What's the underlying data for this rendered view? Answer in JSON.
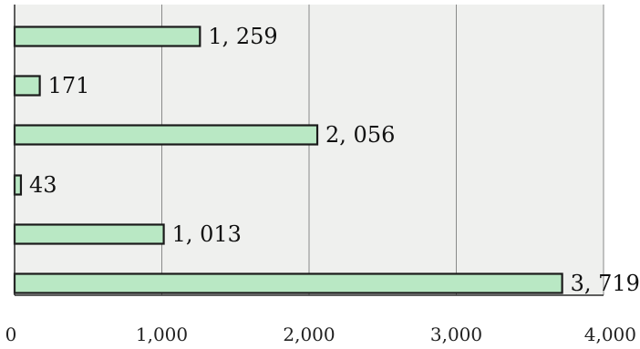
{
  "chart_data": {
    "type": "bar",
    "orientation": "horizontal",
    "categories": [
      "",
      "",
      "",
      "",
      "",
      ""
    ],
    "values": [
      1259,
      171,
      2056,
      43,
      1013,
      3719
    ],
    "value_labels": [
      "1, 259",
      "171",
      "2, 056",
      "43",
      "1, 013",
      "3, 719"
    ],
    "title": "",
    "xlabel": "",
    "ylabel": "",
    "xlim": [
      0,
      4000
    ],
    "x_ticks": [
      0,
      1000,
      2000,
      3000,
      4000
    ],
    "x_tick_labels": [
      "0",
      "1,000",
      "2,000",
      "3,000",
      "4,000"
    ],
    "grid": "vertical",
    "legend": "none",
    "colors": {
      "bar_fill": "#b9e8c4",
      "bar_stroke": "#1a1a1a",
      "plot_background": "#eff0ee",
      "grid": "#8a8a8a",
      "axis": "#2a2a2a"
    }
  }
}
